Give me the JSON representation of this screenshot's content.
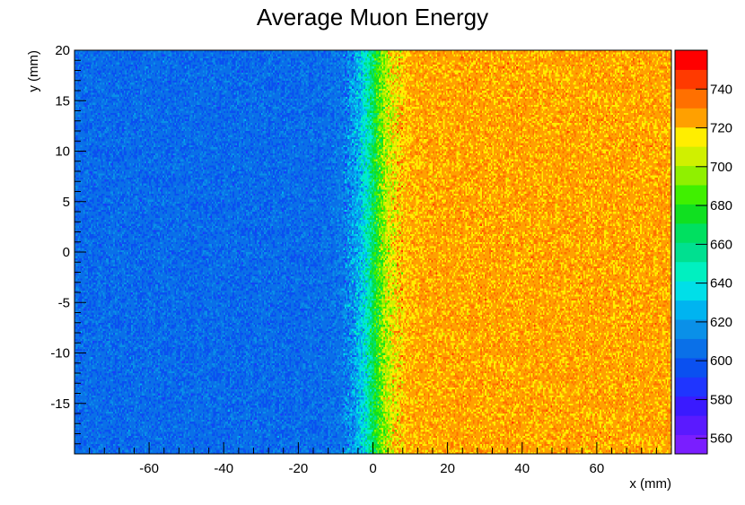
{
  "chart_data": {
    "type": "heatmap",
    "title": "Average Muon Energy",
    "xlabel": "x (mm)",
    "ylabel": "y (mm)",
    "xlim": [
      -80,
      80
    ],
    "ylim": [
      -20,
      20
    ],
    "x_ticks": [
      -60,
      -40,
      -20,
      0,
      20,
      40,
      60
    ],
    "y_ticks": [
      -15,
      -10,
      -5,
      0,
      5,
      10,
      15,
      20
    ],
    "z_range": [
      552,
      760
    ],
    "z_ticks": [
      560,
      580,
      600,
      620,
      640,
      660,
      680,
      700,
      720,
      740
    ],
    "profile": {
      "low_value": 605,
      "high_value": 725,
      "transition_x_range": [
        -5,
        5
      ]
    },
    "palette": [
      "#7a1eff",
      "#5a1aff",
      "#3a1aff",
      "#1f35ff",
      "#0a50f0",
      "#0a70e8",
      "#0a90e8",
      "#00b4f0",
      "#00dfe8",
      "#00f0c0",
      "#00e090",
      "#00e060",
      "#10e020",
      "#40f000",
      "#90f000",
      "#d0f000",
      "#ffee00",
      "#ffa000",
      "#ff7000",
      "#ff3a00",
      "#ff0000"
    ]
  }
}
